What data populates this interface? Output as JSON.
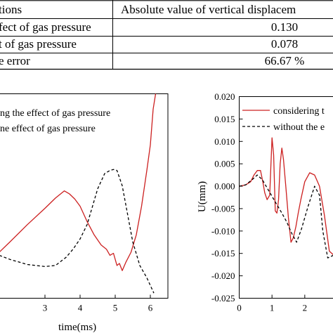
{
  "table": {
    "header": [
      "tions",
      "Absolute value of vertical displacem"
    ],
    "rows": [
      [
        "fect of gas pressure",
        "0.130"
      ],
      [
        "t of gas pressure",
        "0.078"
      ],
      [
        "e error",
        "66.67 %"
      ]
    ]
  },
  "chart_data": [
    {
      "type": "line",
      "title": "",
      "xlabel": "time(ms)",
      "ylabel": "",
      "xticks": [
        "3",
        "4",
        "5",
        "6"
      ],
      "xlim": [
        1.7,
        6.5
      ],
      "ylim": [
        -1,
        1
      ],
      "legend": {
        "placement": "top-left",
        "entries": [
          "ng the effect of gas pressure",
          "ne effect of gas pressure"
        ]
      },
      "series": [
        {
          "legend_entry": 0,
          "color": "#cc2020",
          "style": "solid",
          "x": [
            1.7,
            2.0,
            2.5,
            3.0,
            3.3,
            3.55,
            3.7,
            3.85,
            4.0,
            4.2,
            4.4,
            4.6,
            4.75,
            4.85,
            4.95,
            5.05,
            5.12,
            5.2,
            5.3,
            5.45,
            5.6,
            5.75,
            5.9,
            6.0,
            6.08,
            6.15
          ],
          "y": [
            -0.55,
            -0.45,
            -0.28,
            -0.12,
            -0.02,
            0.05,
            0.02,
            -0.03,
            -0.1,
            -0.25,
            -0.38,
            -0.48,
            -0.52,
            -0.58,
            -0.56,
            -0.68,
            -0.66,
            -0.73,
            -0.65,
            -0.55,
            -0.38,
            -0.1,
            0.25,
            0.5,
            0.85,
            1.0
          ]
        },
        {
          "legend_entry": 1,
          "color": "#000000",
          "style": "dashed",
          "x": [
            1.7,
            2.0,
            2.5,
            3.0,
            3.3,
            3.6,
            3.8,
            4.0,
            4.2,
            4.5,
            4.7,
            4.85,
            4.95,
            5.05,
            5.2,
            5.5,
            5.7,
            5.9,
            6.1
          ],
          "y": [
            -0.58,
            -0.62,
            -0.67,
            -0.69,
            -0.68,
            -0.6,
            -0.52,
            -0.42,
            -0.28,
            0.07,
            0.22,
            0.25,
            0.26,
            0.25,
            0.1,
            -0.45,
            -0.68,
            -0.8,
            -0.95
          ]
        }
      ]
    },
    {
      "type": "line",
      "title": "",
      "xlabel": "",
      "ylabel": "U(mm)",
      "xticks": [
        "0",
        "1",
        "2"
      ],
      "yticks": [
        "0.020",
        "0.015",
        "0.010",
        "0.005",
        "0.000",
        "-0.005",
        "-0.010",
        "-0.015",
        "-0.020",
        "-0.025"
      ],
      "xlim": [
        0,
        3
      ],
      "ylim": [
        -0.025,
        0.02
      ],
      "legend": {
        "placement": "top-right",
        "entries": [
          "considering t",
          "without the e"
        ]
      },
      "series": [
        {
          "legend_entry": 0,
          "color": "#cc2020",
          "style": "solid",
          "x": [
            0,
            0.2,
            0.35,
            0.45,
            0.55,
            0.65,
            0.72,
            0.78,
            0.85,
            0.93,
            1.0,
            1.05,
            1.1,
            1.15,
            1.2,
            1.25,
            1.3,
            1.35,
            1.42,
            1.5,
            1.58,
            1.65,
            1.73,
            1.8,
            1.88,
            2.0,
            2.15,
            2.3,
            2.45,
            2.6,
            2.75,
            2.9,
            3.0
          ],
          "y": [
            0,
            0.0003,
            0.001,
            0.0025,
            0.0035,
            0.0035,
            0.001,
            -0.0015,
            -0.003,
            -0.002,
            0.0108,
            0.007,
            -0.0055,
            -0.006,
            -0.003,
            0.005,
            0.0085,
            0.006,
            0.0,
            -0.007,
            -0.0125,
            -0.0115,
            -0.009,
            -0.006,
            -0.003,
            0.001,
            0.003,
            0.0025,
            0.0,
            -0.0065,
            -0.0145,
            -0.0155,
            -0.015
          ]
        },
        {
          "legend_entry": 1,
          "color": "#000000",
          "style": "dashed",
          "x": [
            0,
            0.2,
            0.4,
            0.55,
            0.7,
            0.9,
            1.1,
            1.3,
            1.45,
            1.6,
            1.75,
            1.9,
            2.1,
            2.3,
            2.45,
            2.55,
            2.7,
            2.85,
            3.0
          ],
          "y": [
            0,
            0.0003,
            0.0015,
            0.0025,
            0.0015,
            -0.001,
            -0.0035,
            -0.006,
            -0.008,
            -0.0105,
            -0.0125,
            -0.0095,
            -0.0045,
            0.0,
            -0.002,
            -0.01,
            -0.016,
            -0.0155,
            -0.015
          ]
        }
      ]
    }
  ]
}
